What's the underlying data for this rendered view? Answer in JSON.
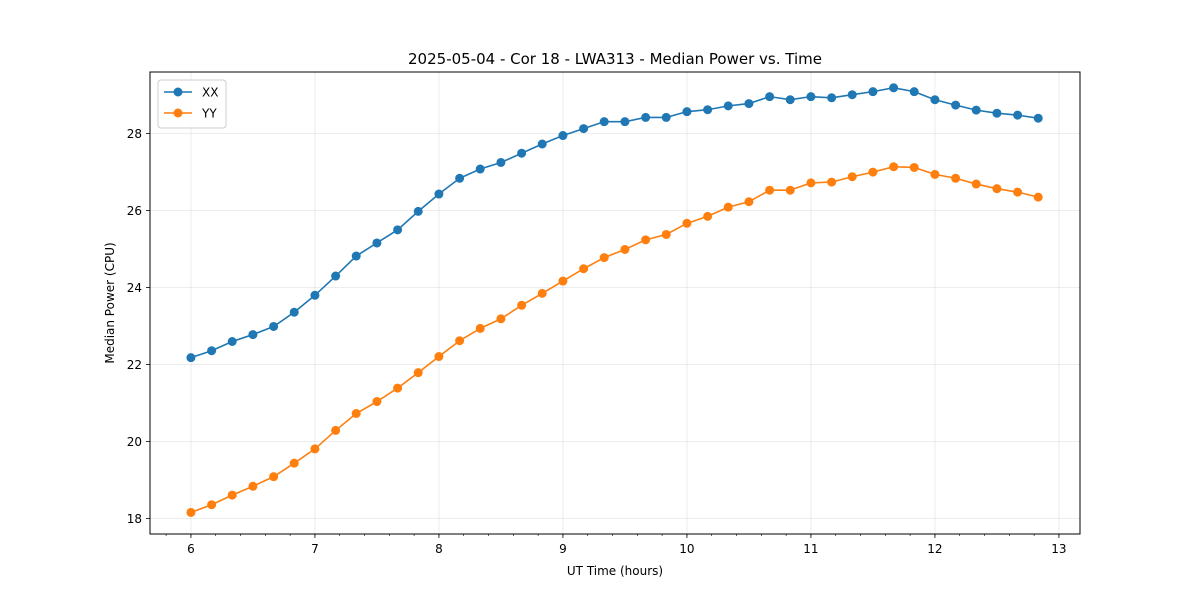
{
  "chart_data": {
    "type": "line",
    "title": "2025-05-04 - Cor 18 - LWA313 - Median Power vs. Time",
    "xlabel": "UT Time (hours)",
    "ylabel": "Median Power (CPU)",
    "xlim": [
      5.67,
      13.17
    ],
    "ylim": [
      17.6,
      29.6
    ],
    "xticks": [
      6,
      7,
      8,
      9,
      10,
      11,
      12,
      13
    ],
    "xtick_labels": [
      "6",
      "7",
      "8",
      "9",
      "10",
      "11",
      "12",
      "13"
    ],
    "xminor_step": 0.2,
    "yticks": [
      18,
      20,
      22,
      24,
      26,
      28
    ],
    "ytick_labels": [
      "18",
      "20",
      "22",
      "24",
      "26",
      "28"
    ],
    "grid": true,
    "legend_position": "top-left",
    "x": [
      6.0,
      6.167,
      6.333,
      6.5,
      6.667,
      6.833,
      7.0,
      7.167,
      7.333,
      7.5,
      7.667,
      7.833,
      8.0,
      8.167,
      8.333,
      8.5,
      8.667,
      8.833,
      9.0,
      9.167,
      9.333,
      9.5,
      9.667,
      9.833,
      10.0,
      10.167,
      10.333,
      10.5,
      10.667,
      10.833,
      11.0,
      11.167,
      11.333,
      11.5,
      11.667,
      11.833,
      12.0,
      12.167,
      12.333,
      12.5,
      12.667,
      12.833
    ],
    "series": [
      {
        "name": "XX",
        "color": "#1f77b4",
        "values": [
          22.18,
          22.36,
          22.6,
          22.78,
          22.99,
          23.36,
          23.8,
          24.3,
          24.82,
          25.16,
          25.5,
          25.98,
          26.43,
          26.84,
          27.08,
          27.25,
          27.49,
          27.73,
          27.95,
          28.13,
          28.31,
          28.31,
          28.42,
          28.42,
          28.57,
          28.62,
          28.72,
          28.78,
          28.96,
          28.88,
          28.96,
          28.93,
          29.01,
          29.09,
          29.19,
          29.09,
          28.88,
          28.74,
          28.61,
          28.53,
          28.48,
          28.4
        ]
      },
      {
        "name": "YY",
        "color": "#ff7f0e",
        "values": [
          18.16,
          18.36,
          18.61,
          18.84,
          19.09,
          19.44,
          19.81,
          20.29,
          20.73,
          21.04,
          21.39,
          21.79,
          22.21,
          22.62,
          22.94,
          23.19,
          23.54,
          23.85,
          24.17,
          24.49,
          24.78,
          24.99,
          25.24,
          25.38,
          25.67,
          25.85,
          26.09,
          26.23,
          26.53,
          26.53,
          26.72,
          26.74,
          26.88,
          27.0,
          27.14,
          27.12,
          26.94,
          26.84,
          26.69,
          26.57,
          26.48,
          26.35
        ]
      }
    ]
  }
}
